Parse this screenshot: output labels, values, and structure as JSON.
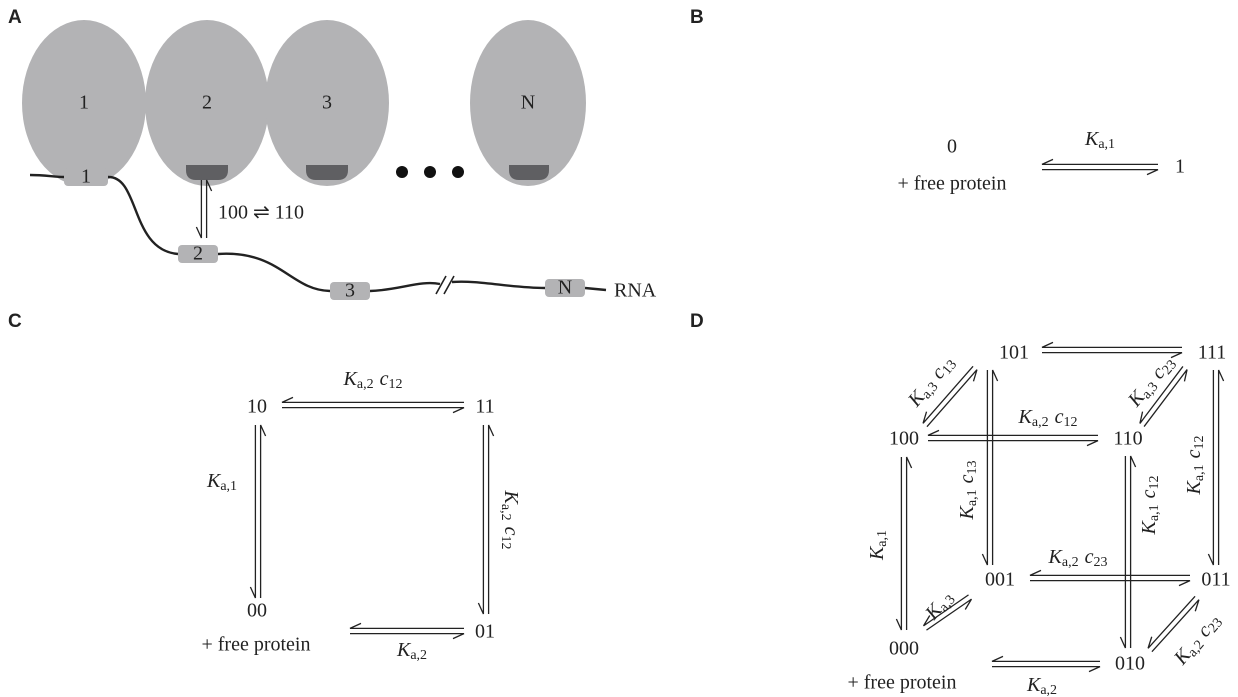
{
  "panels": {
    "a": {
      "letter": "A",
      "oval_labels": [
        "1",
        "2",
        "3",
        "N"
      ],
      "site_labels": [
        "1",
        "2",
        "3",
        "N"
      ],
      "transition": "100 ⇌ 110",
      "rna": "RNA"
    },
    "b": {
      "letter": "B",
      "states": [
        "0",
        "1"
      ],
      "free_protein": "+ free protein",
      "rates": [
        {
          "k": "K",
          "k_sub": "a,1"
        }
      ]
    },
    "c": {
      "letter": "C",
      "states": [
        "10",
        "11",
        "00",
        "01"
      ],
      "free_protein": "+ free protein",
      "rates": [
        {
          "k": "K",
          "k_sub": "a,2",
          "c": "c",
          "c_sub": "12"
        },
        {
          "k": "K",
          "k_sub": "a,1"
        },
        {
          "k": "K",
          "k_sub": "a,2",
          "c": "c",
          "c_sub": "12"
        },
        {
          "k": "K",
          "k_sub": "a,2"
        }
      ]
    },
    "d": {
      "letter": "D",
      "states": [
        "101",
        "111",
        "100",
        "110",
        "001",
        "011",
        "000",
        "010"
      ],
      "free_protein": "+ free protein",
      "rates": [
        {
          "k": "K",
          "k_sub": "a,3",
          "c": "c",
          "c_sub": "13"
        },
        {
          "k": "K",
          "k_sub": "a,3",
          "c": "c",
          "c_sub": "23"
        },
        {
          "k": "K",
          "k_sub": "a,2",
          "c": "c",
          "c_sub": "12"
        },
        {
          "k": "K",
          "k_sub": "a,1",
          "c": "c",
          "c_sub": "13"
        },
        {
          "k": "K",
          "k_sub": "a,1",
          "c": "c",
          "c_sub": "12"
        },
        {
          "k": "K",
          "k_sub": "a,1",
          "c": "c",
          "c_sub": "12"
        },
        {
          "k": "K",
          "k_sub": "a,2",
          "c": "c",
          "c_sub": "23"
        },
        {
          "k": "K",
          "k_sub": "a,1"
        },
        {
          "k": "K",
          "k_sub": "a,3"
        },
        {
          "k": "K",
          "k_sub": "a,2",
          "c": "c",
          "c_sub": "23"
        },
        {
          "k": "K",
          "k_sub": "a,2"
        }
      ]
    }
  }
}
